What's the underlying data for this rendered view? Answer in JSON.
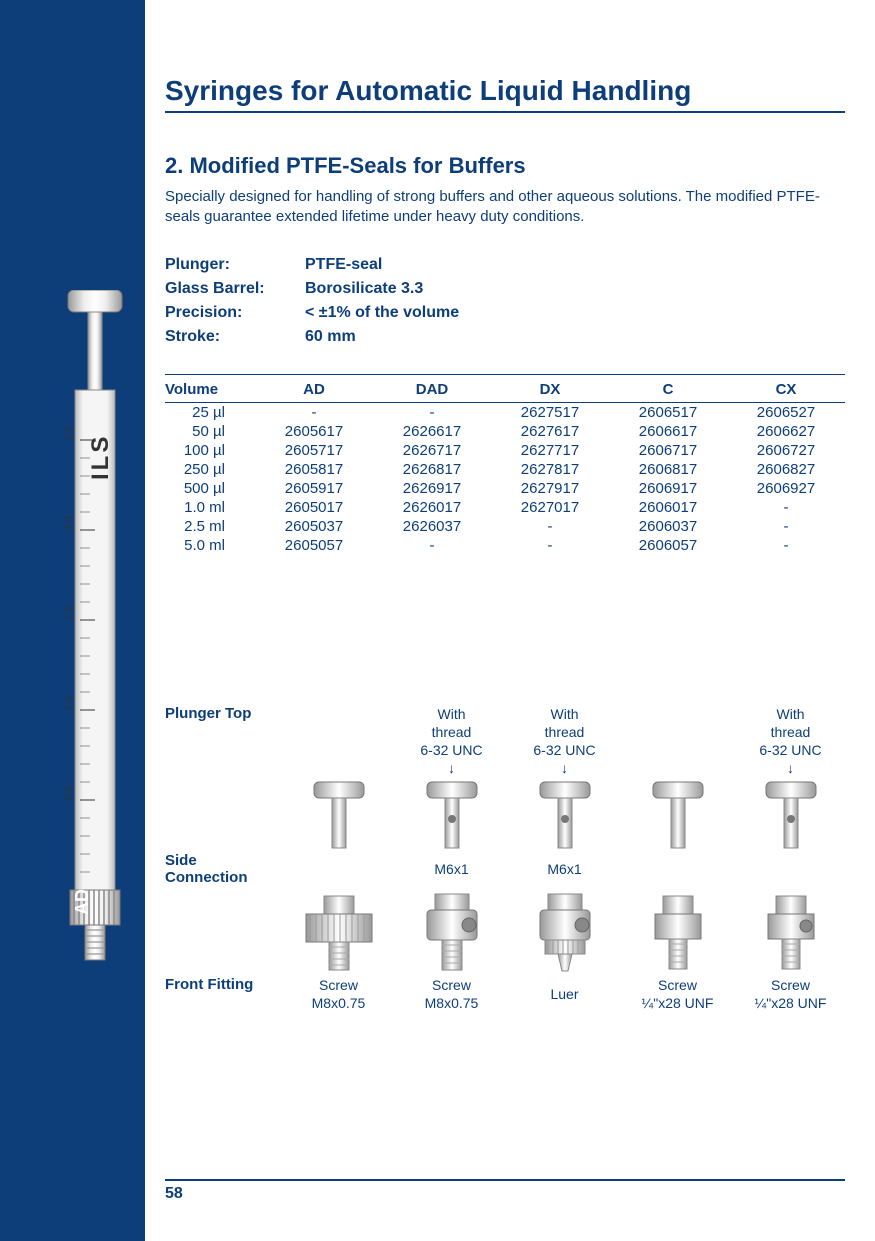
{
  "colors": {
    "brand": "#0d3e7a",
    "bg": "#ffffff"
  },
  "page_number": "58",
  "syringe_model_label": "AD",
  "scale_marks": [
    "0.5",
    "1.0",
    "1.5",
    "2.0",
    "2.5"
  ],
  "brand_text": "ILS",
  "title": "Syringes for Automatic Liquid Handling",
  "section": {
    "heading": "2. Modified PTFE-Seals for Buffers",
    "description": "Specially designed for handling of strong buffers and other aqueous solutions. The modified PTFE-seals guarantee extended lifetime under heavy duty conditions."
  },
  "specs": [
    {
      "label": "Plunger:",
      "value": "PTFE-seal"
    },
    {
      "label": "Glass Barrel:",
      "value": "Borosilicate 3.3"
    },
    {
      "label": "Precision:",
      "value": "< ±1% of the volume"
    },
    {
      "label": "Stroke:",
      "value": "60 mm"
    }
  ],
  "table": {
    "columns": [
      "Volume",
      "AD",
      "DAD",
      "DX",
      "C",
      "CX"
    ],
    "rows": [
      [
        "25 µl",
        "-",
        "-",
        "2627517",
        "2606517",
        "2606527"
      ],
      [
        "50 µl",
        "2605617",
        "2626617",
        "2627617",
        "2606617",
        "2606627"
      ],
      [
        "100 µl",
        "2605717",
        "2626717",
        "2627717",
        "2606717",
        "2606727"
      ],
      [
        "250 µl",
        "2605817",
        "2626817",
        "2627817",
        "2606817",
        "2606827"
      ],
      [
        "500 µl",
        "2605917",
        "2626917",
        "2627917",
        "2606917",
        "2606927"
      ],
      [
        "1.0 ml",
        "2605017",
        "2626017",
        "2627017",
        "2606017",
        "-"
      ],
      [
        "2.5 ml",
        "2605037",
        "2626037",
        "-",
        "2606037",
        "-"
      ],
      [
        "5.0 ml",
        "2605057",
        "-",
        "-",
        "2606057",
        "-"
      ]
    ]
  },
  "fittings": {
    "row1_label": "Plunger Top",
    "row2_label": "Side\nConnection",
    "row3_label": "Front Fitting",
    "plunger_top": [
      "",
      "With\nthread\n6-32 UNC\n↓",
      "With\nthread\n6-32 UNC\n↓",
      "",
      "With\nthread\n6-32 UNC\n↓"
    ],
    "side_connection": [
      "",
      "M6x1",
      "M6x1",
      "",
      ""
    ],
    "front_fitting": [
      "Screw\nM8x0.75",
      "Screw\nM8x0.75",
      "Luer",
      "Screw\n¼\"x28 UNF",
      "Screw\n¼\"x28 UNF"
    ]
  }
}
